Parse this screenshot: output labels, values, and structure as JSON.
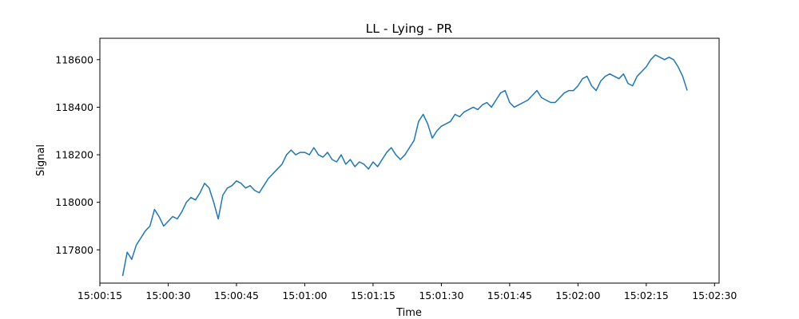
{
  "chart_data": {
    "type": "line",
    "title": "LL - Lying - PR",
    "xlabel": "Time",
    "ylabel": "Signal",
    "x_ticks": [
      "15:00:15",
      "15:00:30",
      "15:00:45",
      "15:01:00",
      "15:01:15",
      "15:01:30",
      "15:01:45",
      "15:02:00",
      "15:02:15",
      "15:02:30"
    ],
    "y_ticks": [
      117800,
      118000,
      118200,
      118400,
      118600
    ],
    "xlim": [
      "15:00:15",
      "15:02:31"
    ],
    "ylim": [
      117660,
      118690
    ],
    "grid": false,
    "line_color": "#1f77b4",
    "series": [
      {
        "x": [
          "15:00:20",
          "15:00:21",
          "15:00:22",
          "15:00:23",
          "15:00:24",
          "15:00:25",
          "15:00:26",
          "15:00:27",
          "15:00:28",
          "15:00:29",
          "15:00:30",
          "15:00:31",
          "15:00:32",
          "15:00:33",
          "15:00:34",
          "15:00:35",
          "15:00:36",
          "15:00:37",
          "15:00:38",
          "15:00:39",
          "15:00:40",
          "15:00:41",
          "15:00:42",
          "15:00:43",
          "15:00:44",
          "15:00:45",
          "15:00:46",
          "15:00:47",
          "15:00:48",
          "15:00:49",
          "15:00:50",
          "15:00:51",
          "15:00:52",
          "15:00:53",
          "15:00:54",
          "15:00:55",
          "15:00:56",
          "15:00:57",
          "15:00:58",
          "15:00:59",
          "15:01:00",
          "15:01:01",
          "15:01:02",
          "15:01:03",
          "15:01:04",
          "15:01:05",
          "15:01:06",
          "15:01:07",
          "15:01:08",
          "15:01:09",
          "15:01:10",
          "15:01:11",
          "15:01:12",
          "15:01:13",
          "15:01:14",
          "15:01:15",
          "15:01:16",
          "15:01:17",
          "15:01:18",
          "15:01:19",
          "15:01:20",
          "15:01:21",
          "15:01:22",
          "15:01:23",
          "15:01:24",
          "15:01:25",
          "15:01:26",
          "15:01:27",
          "15:01:28",
          "15:01:29",
          "15:01:30",
          "15:01:31",
          "15:01:32",
          "15:01:33",
          "15:01:34",
          "15:01:35",
          "15:01:36",
          "15:01:37",
          "15:01:38",
          "15:01:39",
          "15:01:40",
          "15:01:41",
          "15:01:42",
          "15:01:43",
          "15:01:44",
          "15:01:45",
          "15:01:46",
          "15:01:47",
          "15:01:48",
          "15:01:49",
          "15:01:50",
          "15:01:51",
          "15:01:52",
          "15:01:53",
          "15:01:54",
          "15:01:55",
          "15:01:56",
          "15:01:57",
          "15:01:58",
          "15:01:59",
          "15:02:00",
          "15:02:01",
          "15:02:02",
          "15:02:03",
          "15:02:04",
          "15:02:05",
          "15:02:06",
          "15:02:07",
          "15:02:08",
          "15:02:09",
          "15:02:10",
          "15:02:11",
          "15:02:12",
          "15:02:13",
          "15:02:14",
          "15:02:15",
          "15:02:16",
          "15:02:17",
          "15:02:18",
          "15:02:19",
          "15:02:20",
          "15:02:21",
          "15:02:22",
          "15:02:23",
          "15:02:24"
        ],
        "values": [
          117690,
          117790,
          117760,
          117820,
          117850,
          117880,
          117900,
          117970,
          117940,
          117900,
          117920,
          117940,
          117930,
          117960,
          118000,
          118020,
          118010,
          118040,
          118080,
          118060,
          118000,
          117930,
          118030,
          118060,
          118070,
          118090,
          118080,
          118060,
          118070,
          118050,
          118040,
          118070,
          118100,
          118120,
          118140,
          118160,
          118200,
          118220,
          118200,
          118210,
          118210,
          118200,
          118230,
          118200,
          118190,
          118210,
          118180,
          118170,
          118200,
          118160,
          118180,
          118150,
          118170,
          118160,
          118140,
          118170,
          118150,
          118180,
          118210,
          118230,
          118200,
          118180,
          118200,
          118230,
          118260,
          118340,
          118370,
          118330,
          118270,
          118300,
          118320,
          118330,
          118340,
          118370,
          118360,
          118380,
          118390,
          118400,
          118390,
          118410,
          118420,
          118400,
          118430,
          118460,
          118470,
          118420,
          118400,
          118410,
          118420,
          118430,
          118450,
          118470,
          118440,
          118430,
          118420,
          118420,
          118440,
          118460,
          118470,
          118470,
          118490,
          118520,
          118530,
          118490,
          118470,
          118510,
          118530,
          118540,
          118530,
          118520,
          118540,
          118500,
          118490,
          118530,
          118550,
          118570,
          118600,
          118620,
          118610,
          118600,
          118610,
          118600,
          118570,
          118530,
          118470
        ]
      }
    ]
  }
}
